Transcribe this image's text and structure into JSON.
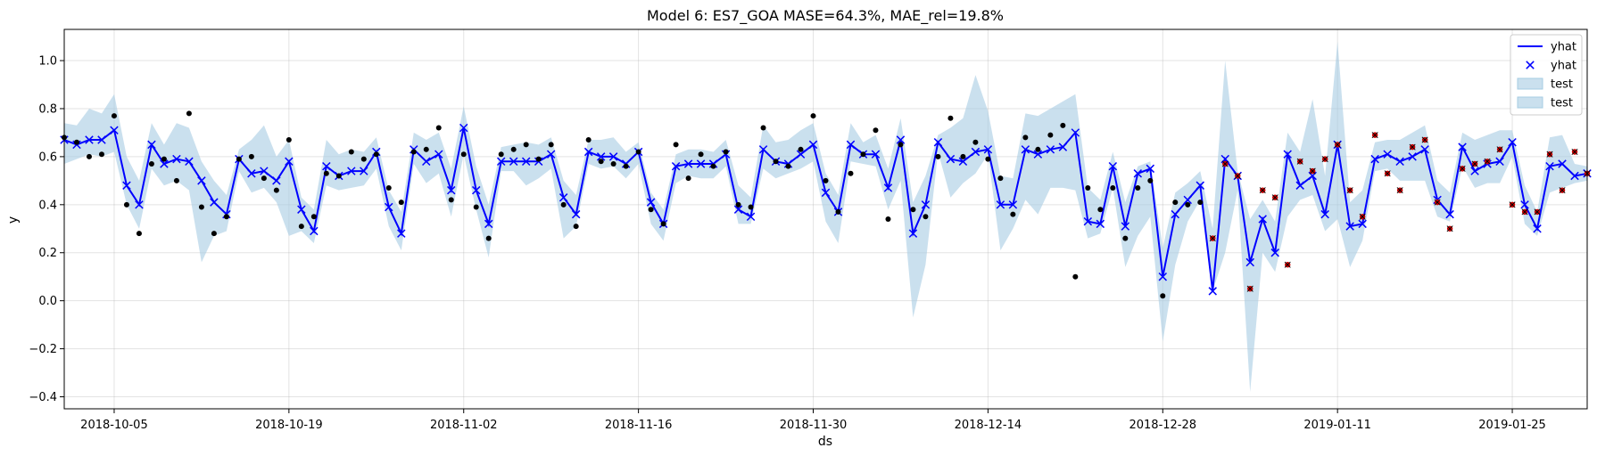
{
  "chart_data": {
    "type": "line",
    "title": "Model 6: ES7_GOA MASE=64.3%, MAE_rel=19.8%",
    "xlabel": "ds",
    "ylabel": "y",
    "x_type": "date",
    "xlim": [
      "2018-10-01",
      "2019-01-31"
    ],
    "ylim": [
      -0.45,
      1.13
    ],
    "x_ticks": [
      "2018-10-05",
      "2018-10-19",
      "2018-11-02",
      "2018-11-16",
      "2018-11-30",
      "2018-12-14",
      "2018-12-28",
      "2019-01-11",
      "2019-01-25"
    ],
    "y_ticks": [
      "−0.4",
      "−0.2",
      "0.0",
      "0.2",
      "0.4",
      "0.6",
      "0.8",
      "1.0"
    ],
    "grid": true,
    "legend_position": "top-right",
    "legend": [
      {
        "label": "yhat",
        "kind": "line",
        "color": "#0000ff"
      },
      {
        "label": "yhat",
        "kind": "x-marker",
        "color": "#0000ff"
      },
      {
        "label": "test",
        "kind": "band",
        "color": "#a6cce3"
      },
      {
        "label": "test",
        "kind": "band",
        "color": "#a6cce3"
      }
    ],
    "colors": {
      "yhat": "#0000ff",
      "band": "#a6cce3",
      "actual": "#000000",
      "test_point": "#cc0000"
    },
    "test_start": "2019-01-01",
    "dates": [
      "2018-10-01",
      "2018-10-02",
      "2018-10-03",
      "2018-10-04",
      "2018-10-05",
      "2018-10-06",
      "2018-10-07",
      "2018-10-08",
      "2018-10-09",
      "2018-10-10",
      "2018-10-11",
      "2018-10-12",
      "2018-10-13",
      "2018-10-14",
      "2018-10-15",
      "2018-10-16",
      "2018-10-17",
      "2018-10-18",
      "2018-10-19",
      "2018-10-20",
      "2018-10-21",
      "2018-10-22",
      "2018-10-23",
      "2018-10-24",
      "2018-10-25",
      "2018-10-26",
      "2018-10-27",
      "2018-10-28",
      "2018-10-29",
      "2018-10-30",
      "2018-10-31",
      "2018-11-01",
      "2018-11-02",
      "2018-11-03",
      "2018-11-04",
      "2018-11-05",
      "2018-11-06",
      "2018-11-07",
      "2018-11-08",
      "2018-11-09",
      "2018-11-10",
      "2018-11-11",
      "2018-11-12",
      "2018-11-13",
      "2018-11-14",
      "2018-11-15",
      "2018-11-16",
      "2018-11-17",
      "2018-11-18",
      "2018-11-19",
      "2018-11-20",
      "2018-11-21",
      "2018-11-22",
      "2018-11-23",
      "2018-11-24",
      "2018-11-25",
      "2018-11-26",
      "2018-11-27",
      "2018-11-28",
      "2018-11-29",
      "2018-11-30",
      "2018-12-01",
      "2018-12-02",
      "2018-12-03",
      "2018-12-04",
      "2018-12-05",
      "2018-12-06",
      "2018-12-07",
      "2018-12-08",
      "2018-12-09",
      "2018-12-10",
      "2018-12-11",
      "2018-12-12",
      "2018-12-13",
      "2018-12-14",
      "2018-12-15",
      "2018-12-16",
      "2018-12-17",
      "2018-12-18",
      "2018-12-19",
      "2018-12-20",
      "2018-12-21",
      "2018-12-22",
      "2018-12-23",
      "2018-12-24",
      "2018-12-25",
      "2018-12-26",
      "2018-12-27",
      "2018-12-28",
      "2018-12-29",
      "2018-12-30",
      "2018-12-31",
      "2019-01-01",
      "2019-01-02",
      "2019-01-03",
      "2019-01-04",
      "2019-01-05",
      "2019-01-06",
      "2019-01-07",
      "2019-01-08",
      "2019-01-09",
      "2019-01-10",
      "2019-01-11",
      "2019-01-12",
      "2019-01-13",
      "2019-01-14",
      "2019-01-15",
      "2019-01-16",
      "2019-01-17",
      "2019-01-18",
      "2019-01-19",
      "2019-01-20",
      "2019-01-21",
      "2019-01-22",
      "2019-01-23",
      "2019-01-24",
      "2019-01-25",
      "2019-01-26",
      "2019-01-27",
      "2019-01-28",
      "2019-01-29",
      "2019-01-30",
      "2019-01-31"
    ],
    "yhat": [
      0.67,
      0.65,
      0.67,
      0.67,
      0.71,
      0.48,
      0.4,
      0.65,
      0.57,
      0.59,
      0.58,
      0.5,
      0.41,
      0.36,
      0.59,
      0.53,
      0.54,
      0.5,
      0.58,
      0.38,
      0.29,
      0.56,
      0.52,
      0.54,
      0.54,
      0.62,
      0.39,
      0.28,
      0.63,
      0.58,
      0.61,
      0.46,
      0.72,
      0.46,
      0.32,
      0.58,
      0.58,
      0.58,
      0.58,
      0.61,
      0.43,
      0.36,
      0.62,
      0.6,
      0.6,
      0.57,
      0.62,
      0.41,
      0.32,
      0.56,
      0.57,
      0.57,
      0.57,
      0.61,
      0.38,
      0.35,
      0.63,
      0.58,
      0.57,
      0.61,
      0.65,
      0.45,
      0.37,
      0.65,
      0.61,
      0.61,
      0.47,
      0.67,
      0.28,
      0.4,
      0.66,
      0.59,
      0.58,
      0.62,
      0.63,
      0.4,
      0.4,
      0.63,
      0.61,
      0.63,
      0.64,
      0.7,
      0.33,
      0.32,
      0.56,
      0.31,
      0.53,
      0.55,
      0.1,
      0.36,
      0.42,
      0.48,
      0.04,
      0.59,
      0.52,
      0.16,
      0.34,
      0.2,
      0.61,
      0.48,
      0.52,
      0.36,
      0.65,
      0.31,
      0.32,
      0.59,
      0.61,
      0.58,
      0.6,
      0.63,
      0.42,
      0.36,
      0.64,
      0.54,
      0.57,
      0.58,
      0.66,
      0.4,
      0.3,
      0.56,
      0.57,
      0.52,
      0.53
    ],
    "band_upper": [
      0.74,
      0.73,
      0.8,
      0.78,
      0.86,
      0.6,
      0.5,
      0.74,
      0.65,
      0.74,
      0.72,
      0.58,
      0.5,
      0.44,
      0.63,
      0.67,
      0.73,
      0.6,
      0.67,
      0.43,
      0.38,
      0.67,
      0.61,
      0.63,
      0.62,
      0.68,
      0.46,
      0.37,
      0.7,
      0.67,
      0.7,
      0.55,
      0.81,
      0.56,
      0.4,
      0.64,
      0.65,
      0.66,
      0.65,
      0.68,
      0.5,
      0.44,
      0.67,
      0.67,
      0.68,
      0.62,
      0.66,
      0.45,
      0.38,
      0.61,
      0.63,
      0.63,
      0.62,
      0.67,
      0.48,
      0.43,
      0.73,
      0.66,
      0.67,
      0.71,
      0.74,
      0.53,
      0.44,
      0.74,
      0.66,
      0.69,
      0.55,
      0.76,
      0.41,
      0.52,
      0.69,
      0.72,
      0.76,
      0.94,
      0.79,
      0.52,
      0.51,
      0.78,
      0.77,
      0.8,
      0.83,
      0.86,
      0.47,
      0.42,
      0.62,
      0.41,
      0.56,
      0.58,
      0.22,
      0.45,
      0.49,
      0.54,
      0.3,
      1.0,
      0.54,
      0.34,
      0.42,
      0.33,
      0.7,
      0.62,
      0.84,
      0.52,
      1.08,
      0.41,
      0.46,
      0.66,
      0.67,
      0.67,
      0.7,
      0.73,
      0.5,
      0.45,
      0.7,
      0.67,
      0.69,
      0.71,
      0.71,
      0.48,
      0.37,
      0.68,
      0.69,
      0.57,
      0.56
    ],
    "band_lower": [
      0.57,
      0.59,
      0.61,
      0.6,
      0.62,
      0.4,
      0.3,
      0.55,
      0.48,
      0.5,
      0.46,
      0.16,
      0.27,
      0.29,
      0.54,
      0.45,
      0.47,
      0.41,
      0.27,
      0.29,
      0.24,
      0.48,
      0.46,
      0.47,
      0.48,
      0.55,
      0.31,
      0.21,
      0.57,
      0.49,
      0.53,
      0.35,
      0.61,
      0.38,
      0.18,
      0.54,
      0.54,
      0.48,
      0.51,
      0.55,
      0.26,
      0.31,
      0.57,
      0.55,
      0.56,
      0.51,
      0.57,
      0.32,
      0.25,
      0.49,
      0.52,
      0.51,
      0.51,
      0.56,
      0.32,
      0.32,
      0.55,
      0.51,
      0.53,
      0.55,
      0.58,
      0.33,
      0.24,
      0.58,
      0.57,
      0.56,
      0.38,
      0.5,
      -0.07,
      0.15,
      0.62,
      0.43,
      0.49,
      0.53,
      0.61,
      0.21,
      0.3,
      0.42,
      0.36,
      0.47,
      0.47,
      0.46,
      0.26,
      0.28,
      0.47,
      0.14,
      0.27,
      0.35,
      -0.17,
      0.15,
      0.33,
      0.42,
      0.04,
      0.2,
      0.46,
      -0.38,
      0.2,
      0.12,
      0.35,
      0.42,
      0.44,
      0.29,
      0.34,
      0.14,
      0.25,
      0.54,
      0.55,
      0.5,
      0.5,
      0.5,
      0.35,
      0.33,
      0.56,
      0.47,
      0.49,
      0.49,
      0.6,
      0.32,
      0.27,
      0.45,
      0.47,
      0.49,
      0.5
    ],
    "actual_train": [
      0.68,
      0.66,
      0.6,
      0.61,
      0.77,
      0.4,
      0.28,
      0.57,
      0.59,
      0.5,
      0.78,
      0.39,
      0.28,
      0.35,
      0.59,
      0.6,
      0.51,
      0.46,
      0.67,
      0.31,
      0.35,
      0.53,
      0.52,
      0.62,
      0.59,
      0.61,
      0.47,
      0.41,
      0.62,
      0.63,
      0.72,
      0.42,
      0.61,
      0.39,
      0.26,
      0.61,
      0.63,
      0.65,
      0.59,
      0.65,
      0.4,
      0.31,
      0.67,
      0.58,
      0.57,
      0.56,
      0.62,
      0.38,
      0.32,
      0.65,
      0.51,
      0.61,
      0.56,
      0.62,
      0.4,
      0.39,
      0.72,
      0.58,
      0.56,
      0.63,
      0.77,
      0.5,
      0.37,
      0.53,
      0.61,
      0.71,
      0.34,
      0.65,
      0.38,
      0.35,
      0.6,
      0.76,
      0.6,
      0.66,
      0.59,
      0.51,
      0.36,
      0.68,
      0.63,
      0.69,
      0.73,
      0.1,
      0.47,
      0.38,
      0.47,
      0.26,
      0.47,
      0.5,
      0.02,
      0.41,
      0.4,
      0.41
    ],
    "actual_test": [
      0.26,
      0.57,
      0.52,
      0.05,
      0.46,
      0.43,
      0.15,
      0.58,
      0.54,
      0.59,
      0.65,
      0.46,
      0.35,
      0.69,
      0.53,
      0.46,
      0.64,
      0.67,
      0.41,
      0.3,
      0.55,
      0.57,
      0.58,
      0.63,
      0.4,
      0.37,
      0.37,
      0.61,
      0.46,
      0.62,
      0.53
    ]
  }
}
